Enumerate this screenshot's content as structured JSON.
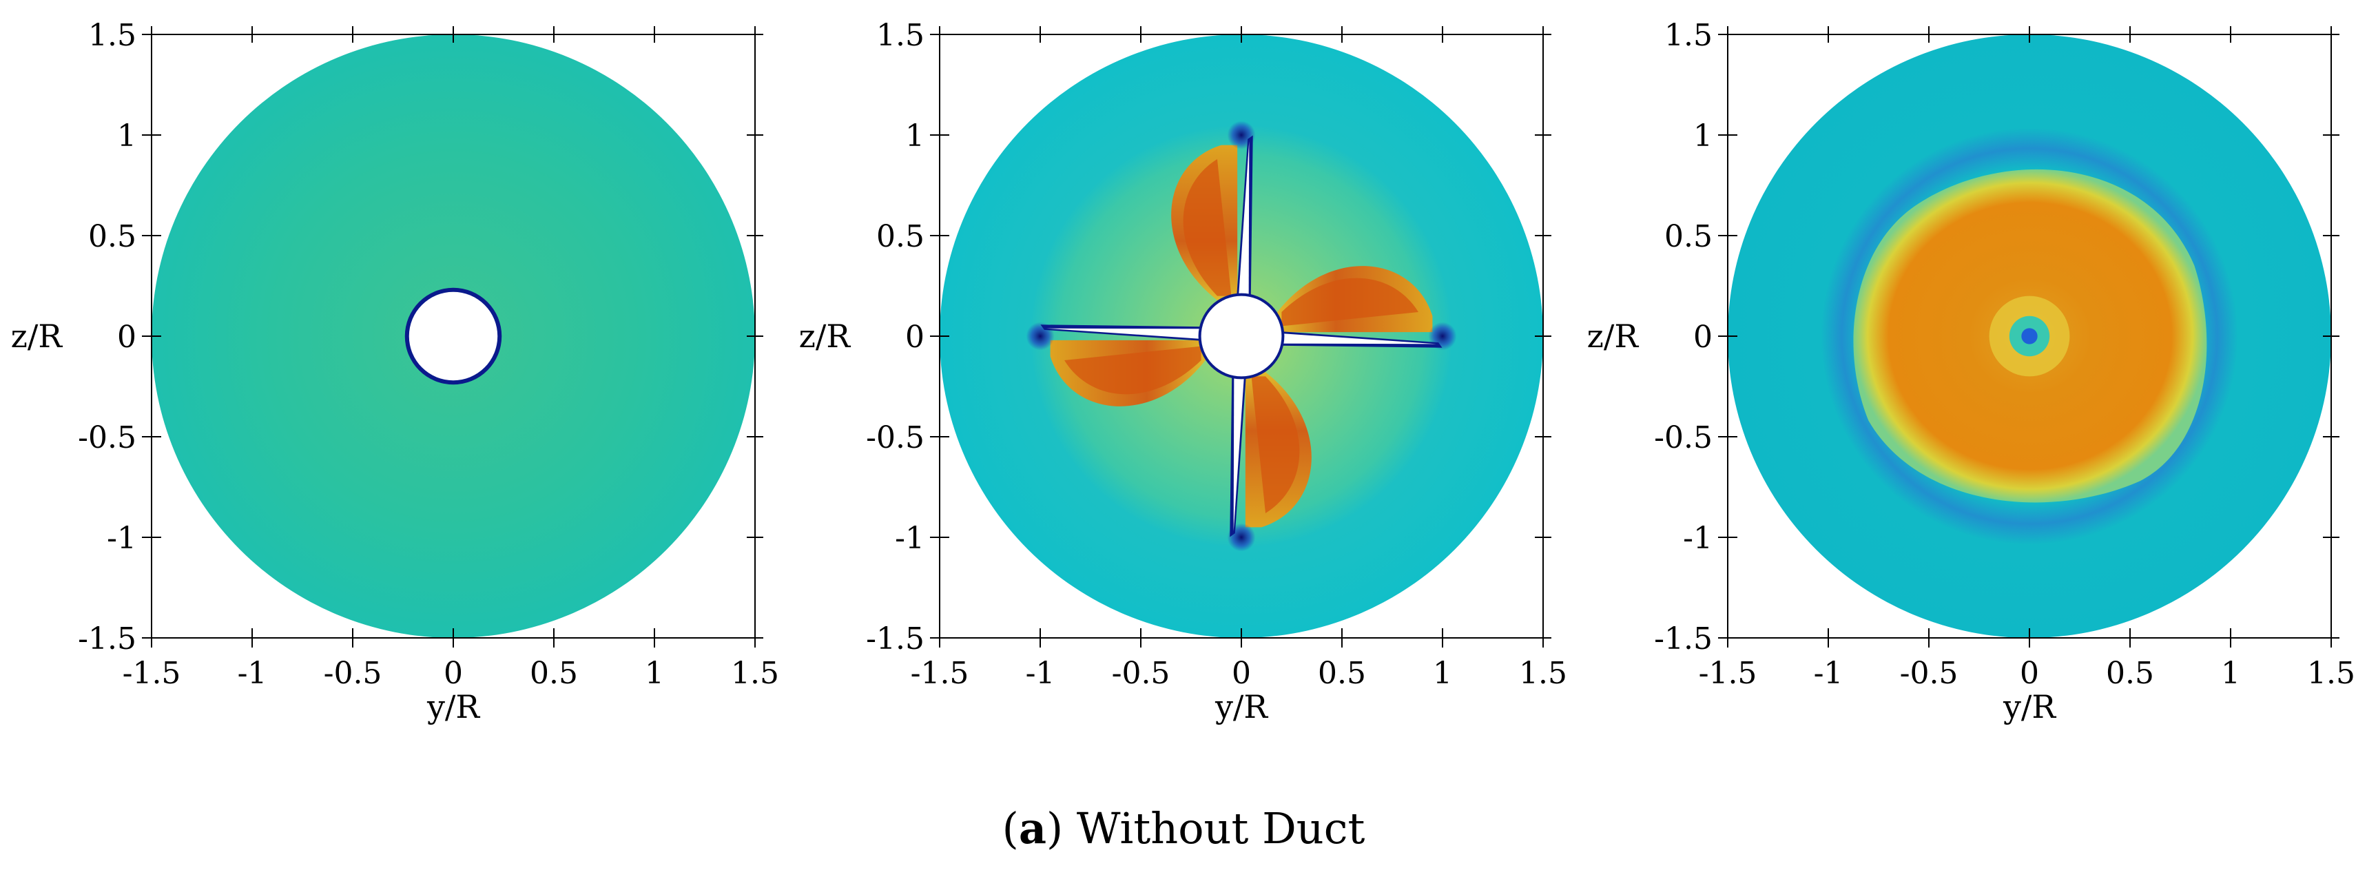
{
  "colors": {
    "background_field": "#1fc0ae",
    "freestream": "#18c1c8",
    "hub_edge": "#0a1a8c",
    "low": "#233ccd",
    "high_orange": "#e7860e",
    "high_red": "#d4560f",
    "yellow": "#e6dc25",
    "frame": "#000000"
  },
  "caption": {
    "label": "a",
    "text": "Without Duct"
  },
  "chart_data": [
    {
      "type": "heatmap",
      "panel": "left",
      "xlabel": "y/R",
      "ylabel": "z/R",
      "xlim": [
        -1.5,
        1.5
      ],
      "ylim": [
        -1.5,
        1.5
      ],
      "xticks": [
        "-1.5",
        "-1",
        "-0.5",
        "0",
        "0.5",
        "1",
        "1.5"
      ],
      "yticks": [
        "1.5",
        "1",
        "0.5",
        "0",
        "-0.5",
        "-1",
        "-1.5"
      ],
      "domain_radius": 1.5,
      "hub_radius": 0.22,
      "blades": 0,
      "field": "uniform"
    },
    {
      "type": "heatmap",
      "panel": "middle",
      "xlabel": "y/R",
      "ylabel": "z/R",
      "xlim": [
        -1.5,
        1.5
      ],
      "ylim": [
        -1.5,
        1.5
      ],
      "xticks": [
        "-1.5",
        "-1",
        "-0.5",
        "0",
        "0.5",
        "1",
        "1.5"
      ],
      "yticks": [
        "1.5",
        "1",
        "0.5",
        "0",
        "-0.5",
        "-1",
        "-1.5"
      ],
      "domain_radius": 1.5,
      "hub_radius": 0.2,
      "blades": 4,
      "blade_tip_radius": 1.0,
      "field": "blade-wakes"
    },
    {
      "type": "heatmap",
      "panel": "right",
      "xlabel": "y/R",
      "ylabel": "z/R",
      "xlim": [
        -1.5,
        1.5
      ],
      "ylim": [
        -1.5,
        1.5
      ],
      "xticks": [
        "-1.5",
        "-1",
        "-0.5",
        "0",
        "0.5",
        "1",
        "1.5"
      ],
      "yticks": [
        "1.5",
        "1",
        "0.5",
        "0",
        "-0.5",
        "-1",
        "-1.5"
      ],
      "domain_radius": 1.5,
      "slipstream_radius": 0.85,
      "blades": 0,
      "field": "slipstream"
    }
  ]
}
